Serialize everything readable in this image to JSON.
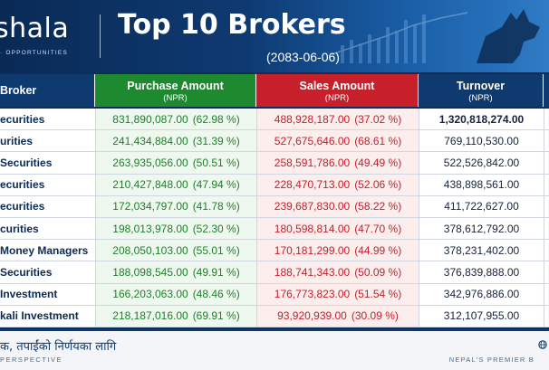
{
  "header": {
    "logo_text": "shala",
    "logo_sub": "· OPPORTUNITIES",
    "title": "Top 10 Brokers",
    "date": "(2083-06-06)"
  },
  "columns": {
    "broker": "Broker",
    "purchase": "Purchase Amount",
    "purchase_unit": "(NPR)",
    "sales": "Sales Amount",
    "sales_unit": "(NPR)",
    "turnover": "Turnover",
    "turnover_unit": "(NPR)"
  },
  "rows": [
    {
      "broker": "ecurities",
      "purchase": "831,890,087.00",
      "purchase_pct": "(62.98 %)",
      "sales": "488,928,187.00",
      "sales_pct": "(37.02 %)",
      "turnover": "1,320,818,274.00"
    },
    {
      "broker": "urities",
      "purchase": "241,434,884.00",
      "purchase_pct": "(31.39 %)",
      "sales": "527,675,646.00",
      "sales_pct": "(68.61 %)",
      "turnover": "769,110,530.00"
    },
    {
      "broker": "Securities",
      "purchase": "263,935,056.00",
      "purchase_pct": "(50.51 %)",
      "sales": "258,591,786.00",
      "sales_pct": "(49.49 %)",
      "turnover": "522,526,842.00"
    },
    {
      "broker": "ecurities",
      "purchase": "210,427,848.00",
      "purchase_pct": "(47.94 %)",
      "sales": "228,470,713.00",
      "sales_pct": "(52.06 %)",
      "turnover": "438,898,561.00"
    },
    {
      "broker": "ecurities",
      "purchase": "172,034,797.00",
      "purchase_pct": "(41.78 %)",
      "sales": "239,687,830.00",
      "sales_pct": "(58.22 %)",
      "turnover": "411,722,627.00"
    },
    {
      "broker": "curities",
      "purchase": "198,013,978.00",
      "purchase_pct": "(52.30 %)",
      "sales": "180,598,814.00",
      "sales_pct": "(47.70 %)",
      "turnover": "378,612,792.00"
    },
    {
      "broker": "Money Managers",
      "purchase": "208,050,103.00",
      "purchase_pct": "(55.01 %)",
      "sales": "170,181,299.00",
      "sales_pct": "(44.99 %)",
      "turnover": "378,231,402.00"
    },
    {
      "broker": "Securities",
      "purchase": "188,098,545.00",
      "purchase_pct": "(49.91 %)",
      "sales": "188,741,343.00",
      "sales_pct": "(50.09 %)",
      "turnover": "376,839,888.00"
    },
    {
      "broker": "Investment",
      "purchase": "166,203,063.00",
      "purchase_pct": "(48.46 %)",
      "sales": "176,773,823.00",
      "sales_pct": "(51.54 %)",
      "turnover": "342,976,886.00"
    },
    {
      "broker": "kali Investment",
      "purchase": "218,187,016.00",
      "purchase_pct": "(69.91 %)",
      "sales": "93,920,939.00",
      "sales_pct": "(30.09 %)",
      "turnover": "312,107,955.00"
    }
  ],
  "footer": {
    "tagline": "क, तपाईंको निर्णयका लागि",
    "perspective": "PERSPECTIVE",
    "right_text": "NEPAL'S PREMIER B"
  },
  "colors": {
    "navy": "#0f3a70",
    "purchase_green": "#1e8a2f",
    "sales_red": "#c7202b"
  }
}
